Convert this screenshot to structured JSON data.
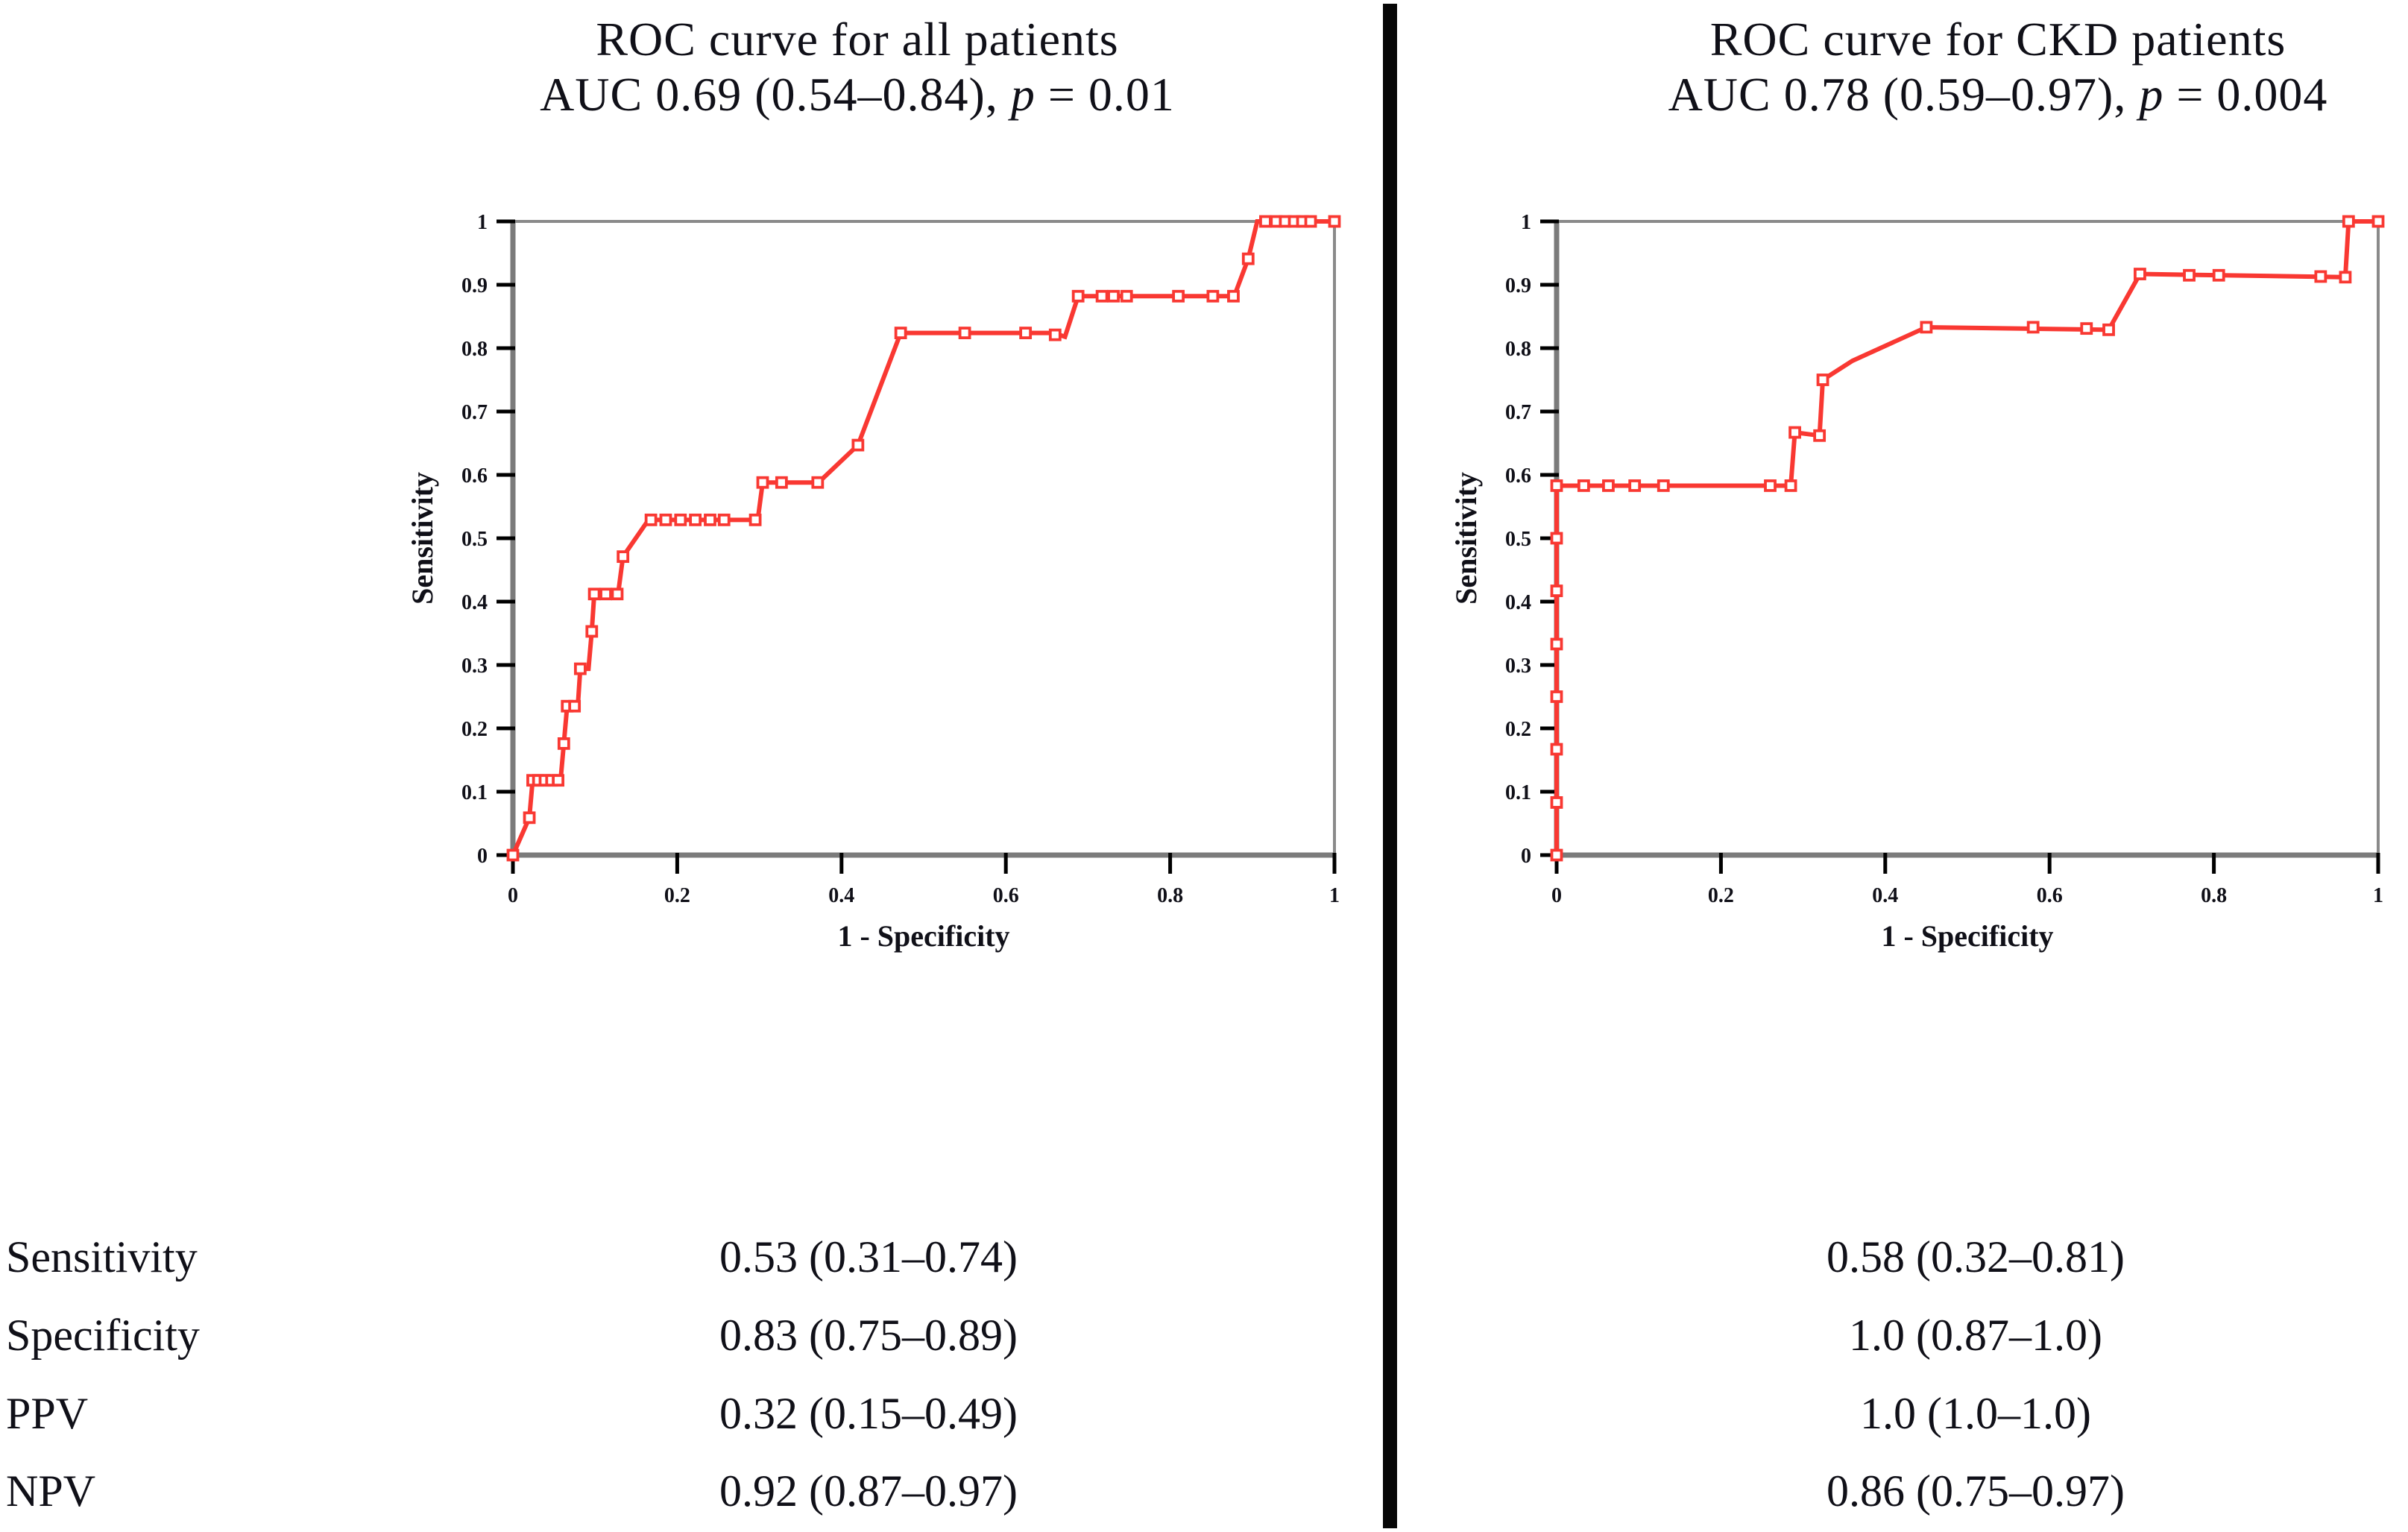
{
  "chart_data": [
    {
      "type": "line",
      "title": "ROC curve for all patients",
      "subtitle": "AUC 0.69 (0.54–0.84), p = 0.01",
      "subtitle_parts": {
        "before_p": "AUC 0.69 (0.54–0.84), ",
        "p": "p",
        "after_p": " = 0.01"
      },
      "auc": 0.69,
      "auc_ci": [
        0.54,
        0.84
      ],
      "p_value": 0.01,
      "xlabel": "1 - Specificity",
      "ylabel": "Sensitivity",
      "xlim": [
        0,
        1
      ],
      "ylim": [
        0,
        1
      ],
      "grid": false,
      "legend": "none",
      "x_ticks": [
        "0",
        "0.2",
        "0.4",
        "0.6",
        "0.8",
        "1"
      ],
      "y_ticks": [
        "0",
        "0.1",
        "0.2",
        "0.3",
        "0.4",
        "0.5",
        "0.6",
        "0.7",
        "0.8",
        "0.9",
        "1"
      ],
      "line_color": "#f93832",
      "series": [
        {
          "name": "ROC",
          "points": [
            [
              0,
              0
            ],
            [
              0.02,
              0.059
            ],
            [
              0.024,
              0.118
            ],
            [
              0.058,
              0.118
            ],
            [
              0.062,
              0.176
            ],
            [
              0.066,
              0.235
            ],
            [
              0.079,
              0.235
            ],
            [
              0.082,
              0.294
            ],
            [
              0.092,
              0.294
            ],
            [
              0.096,
              0.353
            ],
            [
              0.099,
              0.412
            ],
            [
              0.128,
              0.412
            ],
            [
              0.134,
              0.471
            ],
            [
              0.165,
              0.529
            ],
            [
              0.298,
              0.529
            ],
            [
              0.304,
              0.588
            ],
            [
              0.372,
              0.588
            ],
            [
              0.42,
              0.647
            ],
            [
              0.472,
              0.824
            ],
            [
              0.658,
              0.824
            ],
            [
              0.672,
              0.818
            ],
            [
              0.688,
              0.882
            ],
            [
              0.878,
              0.882
            ],
            [
              0.895,
              0.941
            ],
            [
              0.906,
              1
            ],
            [
              1,
              1
            ]
          ],
          "markers": [
            [
              0,
              0
            ],
            [
              0.02,
              0.059
            ],
            [
              0.024,
              0.118
            ],
            [
              0.031,
              0.118
            ],
            [
              0.039,
              0.118
            ],
            [
              0.047,
              0.118
            ],
            [
              0.055,
              0.118
            ],
            [
              0.062,
              0.176
            ],
            [
              0.066,
              0.235
            ],
            [
              0.075,
              0.235
            ],
            [
              0.082,
              0.294
            ],
            [
              0.096,
              0.353
            ],
            [
              0.099,
              0.412
            ],
            [
              0.113,
              0.412
            ],
            [
              0.127,
              0.412
            ],
            [
              0.134,
              0.471
            ],
            [
              0.168,
              0.529
            ],
            [
              0.186,
              0.529
            ],
            [
              0.204,
              0.529
            ],
            [
              0.222,
              0.529
            ],
            [
              0.24,
              0.529
            ],
            [
              0.257,
              0.529
            ],
            [
              0.295,
              0.529
            ],
            [
              0.304,
              0.588
            ],
            [
              0.327,
              0.588
            ],
            [
              0.371,
              0.588
            ],
            [
              0.42,
              0.647
            ],
            [
              0.472,
              0.824
            ],
            [
              0.55,
              0.824
            ],
            [
              0.624,
              0.824
            ],
            [
              0.66,
              0.821
            ],
            [
              0.688,
              0.882
            ],
            [
              0.717,
              0.882
            ],
            [
              0.731,
              0.882
            ],
            [
              0.747,
              0.882
            ],
            [
              0.81,
              0.882
            ],
            [
              0.852,
              0.882
            ],
            [
              0.877,
              0.882
            ],
            [
              0.895,
              0.941
            ],
            [
              0.916,
              1
            ],
            [
              0.929,
              1
            ],
            [
              0.94,
              1
            ],
            [
              0.951,
              1
            ],
            [
              0.961,
              1
            ],
            [
              0.971,
              1
            ],
            [
              1,
              1
            ]
          ]
        }
      ]
    },
    {
      "type": "line",
      "title": "ROC curve for CKD patients",
      "subtitle": "AUC 0.78 (0.59–0.97), p = 0.004",
      "subtitle_parts": {
        "before_p": "AUC 0.78 (0.59–0.97), ",
        "p": "p",
        "after_p": " = 0.004"
      },
      "auc": 0.78,
      "auc_ci": [
        0.59,
        0.97
      ],
      "p_value": 0.004,
      "xlabel": "1 - Specificity",
      "ylabel": "Sensitivity",
      "xlim": [
        0,
        1
      ],
      "ylim": [
        0,
        1
      ],
      "grid": false,
      "legend": "none",
      "x_ticks": [
        "0",
        "0.2",
        "0.4",
        "0.6",
        "0.8",
        "1"
      ],
      "y_ticks": [
        "0",
        "0.1",
        "0.2",
        "0.3",
        "0.4",
        "0.5",
        "0.6",
        "0.7",
        "0.8",
        "0.9",
        "1"
      ],
      "line_color": "#f93832",
      "series": [
        {
          "name": "ROC",
          "points": [
            [
              0,
              0
            ],
            [
              0,
              0.583
            ],
            [
              0.285,
              0.583
            ],
            [
              0.29,
              0.667
            ],
            [
              0.32,
              0.662
            ],
            [
              0.324,
              0.75
            ],
            [
              0.36,
              0.78
            ],
            [
              0.45,
              0.833
            ],
            [
              0.672,
              0.829
            ],
            [
              0.71,
              0.917
            ],
            [
              0.96,
              0.912
            ],
            [
              0.964,
              1
            ],
            [
              1,
              1
            ]
          ],
          "markers": [
            [
              0,
              0
            ],
            [
              0,
              0.083
            ],
            [
              0,
              0.167
            ],
            [
              0,
              0.25
            ],
            [
              0,
              0.333
            ],
            [
              0,
              0.417
            ],
            [
              0,
              0.5
            ],
            [
              0,
              0.583
            ],
            [
              0.033,
              0.583
            ],
            [
              0.063,
              0.583
            ],
            [
              0.095,
              0.583
            ],
            [
              0.13,
              0.583
            ],
            [
              0.26,
              0.583
            ],
            [
              0.285,
              0.583
            ],
            [
              0.29,
              0.667
            ],
            [
              0.32,
              0.662
            ],
            [
              0.324,
              0.75
            ],
            [
              0.45,
              0.833
            ],
            [
              0.58,
              0.833
            ],
            [
              0.645,
              0.831
            ],
            [
              0.672,
              0.829
            ],
            [
              0.71,
              0.917
            ],
            [
              0.77,
              0.915
            ],
            [
              0.806,
              0.915
            ],
            [
              0.93,
              0.913
            ],
            [
              0.96,
              0.912
            ],
            [
              0.964,
              1
            ],
            [
              1,
              1
            ]
          ]
        }
      ]
    }
  ],
  "stats_table": {
    "rows": [
      {
        "label": "Sensitivity",
        "all_patients": "0.53 (0.31–0.74)",
        "ckd_patients": "0.58 (0.32–0.81)"
      },
      {
        "label": "Specificity",
        "all_patients": "0.83 (0.75–0.89)",
        "ckd_patients": "1.0 (0.87–1.0)"
      },
      {
        "label": "PPV",
        "all_patients": "0.32 (0.15–0.49)",
        "ckd_patients": "1.0 (1.0–1.0)"
      },
      {
        "label": "NPV",
        "all_patients": "0.92 (0.87–0.97)",
        "ckd_patients": "0.86 (0.75–0.97)"
      }
    ]
  }
}
